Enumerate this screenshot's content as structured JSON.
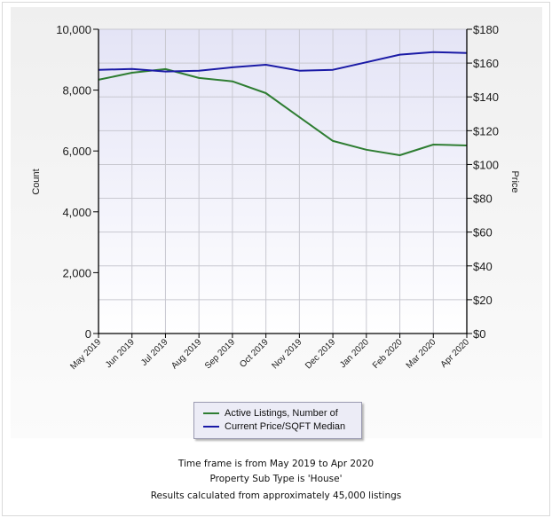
{
  "chart_data": {
    "type": "line",
    "title": "",
    "categories": [
      "May 2019",
      "Jun 2019",
      "Jul 2019",
      "Aug 2019",
      "Sep 2019",
      "Oct 2019",
      "Nov 2019",
      "Dec 2019",
      "Jan 2020",
      "Feb 2020",
      "Mar 2020",
      "Apr 2020"
    ],
    "series": [
      {
        "name": "Active Listings, Number of",
        "axis": "left",
        "color": "#2e7d32",
        "values": [
          8340,
          8570,
          8690,
          8400,
          8290,
          7900,
          7110,
          6330,
          6040,
          5860,
          6210,
          6180
        ]
      },
      {
        "name": "Current Price/SQFT Median",
        "axis": "right",
        "color": "#1a1aa6",
        "values": [
          156,
          156.5,
          155,
          155.5,
          157.5,
          159,
          155.5,
          156,
          160.5,
          165,
          166.5,
          166
        ]
      }
    ],
    "xlabel": "",
    "ylabel_left": "Count",
    "ylabel_right": "Price",
    "ylim_left": [
      0,
      10000
    ],
    "ylim_right": [
      0,
      180
    ],
    "yticks_left": [
      "0",
      "2,000",
      "4,000",
      "6,000",
      "8,000",
      "10,000"
    ],
    "yticks_right": [
      "$0",
      "$20",
      "$40",
      "$60",
      "$80",
      "$100",
      "$120",
      "$140",
      "$160",
      "$180"
    ],
    "grid": true,
    "legend_position": "bottom-center"
  },
  "legend": {
    "items": [
      {
        "label": "Active Listings, Number of",
        "color": "#2e7d32"
      },
      {
        "label": "Current Price/SQFT Median",
        "color": "#1a1aa6"
      }
    ]
  },
  "notes": {
    "time_frame": "Time frame is from May 2019 to Apr 2020",
    "property_type": "Property Sub Type is 'House'",
    "results": "Results calculated from approximately 45,000 listings"
  }
}
